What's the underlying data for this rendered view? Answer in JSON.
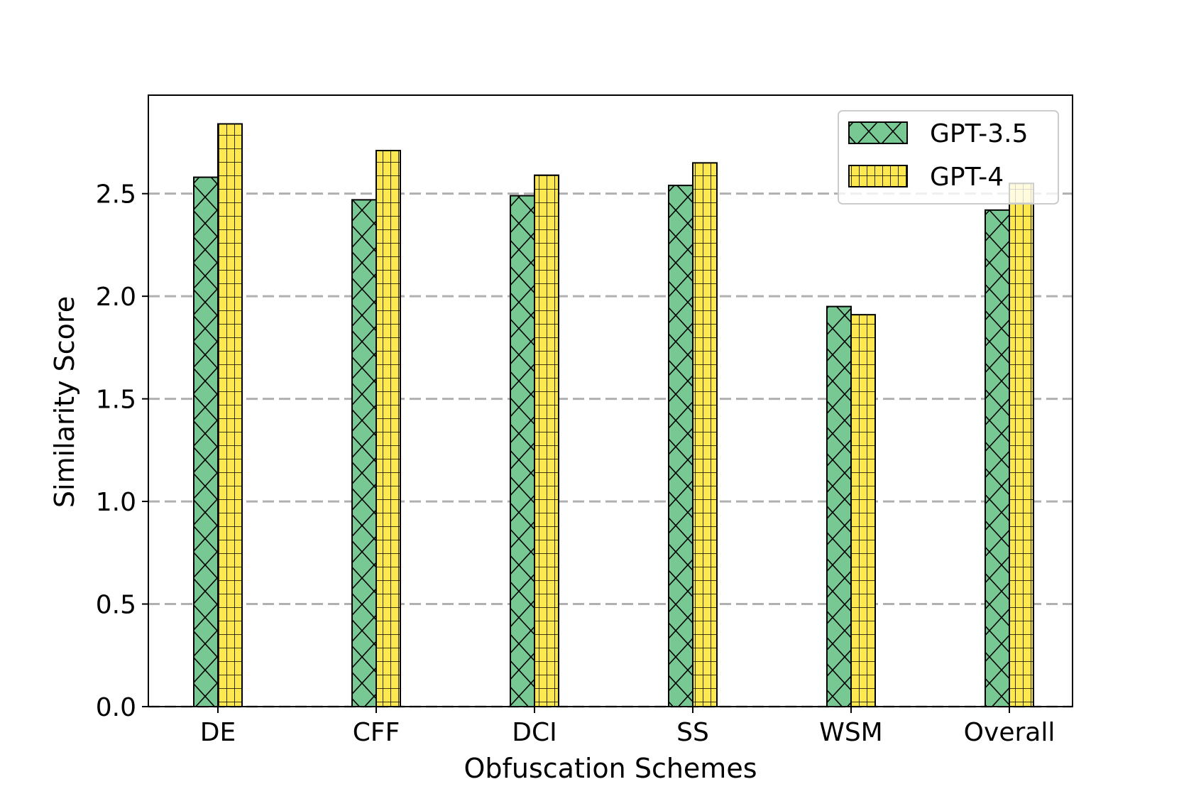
{
  "chart_data": {
    "type": "bar",
    "title": "",
    "xlabel": "Obfuscation Schemes",
    "ylabel": "Similarity Score",
    "categories": [
      "DE",
      "CFF",
      "DCI",
      "SS",
      "WSM",
      "Overall"
    ],
    "series": [
      {
        "name": "GPT-3.5",
        "color": "#77c893",
        "hatch": "x",
        "values": [
          2.58,
          2.47,
          2.49,
          2.54,
          1.95,
          2.42
        ]
      },
      {
        "name": "GPT-4",
        "color": "#fde84f",
        "hatch": "+",
        "values": [
          2.84,
          2.71,
          2.59,
          2.65,
          1.91,
          2.55
        ]
      }
    ],
    "ylim": [
      0,
      2.98
    ],
    "yticks": [
      0.0,
      0.5,
      1.0,
      1.5,
      2.0,
      2.5
    ],
    "ytick_labels": [
      "0.0",
      "0.5",
      "1.0",
      "1.5",
      "2.0",
      "2.5"
    ],
    "grid": "horizontal dashed",
    "legend_position": "top-right"
  }
}
